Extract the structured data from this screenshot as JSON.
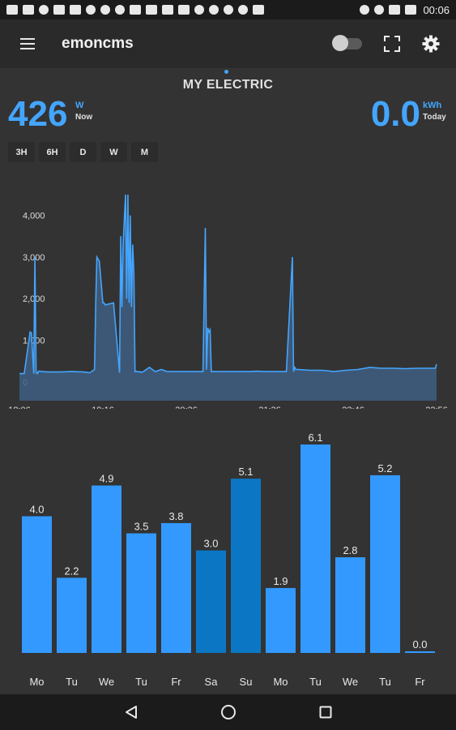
{
  "status_bar": {
    "time": "00:06"
  },
  "app_bar": {
    "title": "emoncms",
    "menu_icon": "hamburger-menu-icon",
    "fullscreen_icon": "fullscreen-icon",
    "settings_icon": "gear-icon"
  },
  "page": {
    "title": "MY ELECTRIC"
  },
  "power": {
    "value": "426",
    "unit": "W",
    "label": "Now"
  },
  "energy": {
    "value": "0.0",
    "unit": "kWh",
    "label": "Today"
  },
  "range_buttons": [
    "3H",
    "6H",
    "D",
    "W",
    "M"
  ],
  "colors": {
    "accent": "#44a5ff",
    "bar": "#3399ff",
    "bar_weekend": "#0b77c4",
    "background": "#333333",
    "line_fill": "#3f5f82"
  },
  "chart_data": [
    {
      "type": "area",
      "title": "",
      "xlabel": "",
      "ylabel": "",
      "x_ticks": [
        "18:06",
        "19:16",
        "20:26",
        "21:36",
        "22:46",
        "23:56"
      ],
      "y_ticks": [
        "0",
        "1,000",
        "2,000",
        "3,000",
        "4,000"
      ],
      "ylim": [
        -450,
        5200
      ],
      "x": [
        "18:06",
        "18:10",
        "18:15",
        "18:16",
        "18:18",
        "18:19",
        "18:20",
        "18:21",
        "18:22",
        "18:25",
        "18:30",
        "18:40",
        "18:50",
        "19:00",
        "19:05",
        "19:09",
        "19:10",
        "19:11",
        "19:13",
        "19:16",
        "19:17",
        "19:18",
        "19:25",
        "19:30",
        "19:31",
        "19:32",
        "19:33",
        "19:35",
        "19:36",
        "19:37",
        "19:38",
        "19:39",
        "19:40",
        "19:41",
        "19:42",
        "19:43",
        "19:44",
        "19:45",
        "19:46",
        "19:47",
        "19:48",
        "19:50",
        "19:55",
        "20:00",
        "20:05",
        "20:10",
        "20:15",
        "20:20",
        "20:30",
        "20:40",
        "20:42",
        "20:43",
        "20:44",
        "20:45",
        "20:46",
        "20:47",
        "20:50",
        "21:00",
        "21:10",
        "21:20",
        "21:25",
        "21:30",
        "21:40",
        "21:50",
        "21:55",
        "21:56",
        "21:57",
        "21:58",
        "22:00",
        "22:10",
        "22:20",
        "22:30",
        "22:40",
        "22:50",
        "23:00",
        "23:10",
        "23:20",
        "23:30",
        "23:40",
        "23:50",
        "23:55",
        "23:56"
      ],
      "values": [
        200,
        200,
        1200,
        1180,
        200,
        3000,
        220,
        200,
        260,
        250,
        240,
        240,
        250,
        240,
        220,
        300,
        1900,
        3000,
        2900,
        1900,
        1900,
        1850,
        1900,
        220,
        3500,
        1800,
        3300,
        4500,
        2000,
        4500,
        1900,
        4000,
        1800,
        3300,
        2600,
        250,
        260,
        250,
        240,
        250,
        230,
        250,
        350,
        250,
        300,
        250,
        250,
        250,
        250,
        250,
        3700,
        300,
        1300,
        1200,
        1250,
        250,
        250,
        250,
        250,
        250,
        260,
        250,
        250,
        250,
        3000,
        250,
        350,
        300,
        300,
        280,
        280,
        250,
        280,
        300,
        350,
        330,
        330,
        320,
        330,
        330,
        330,
        426
      ]
    },
    {
      "type": "bar",
      "title": "",
      "xlabel": "",
      "ylabel": "",
      "categories": [
        "Mo",
        "Tu",
        "We",
        "Tu",
        "Fr",
        "Sa",
        "Su",
        "Mo",
        "Tu",
        "We",
        "Tu",
        "Fr"
      ],
      "values": [
        4.0,
        2.2,
        4.9,
        3.5,
        3.8,
        3.0,
        5.1,
        1.9,
        6.1,
        2.8,
        5.2,
        0.0
      ],
      "labels": [
        "4.0",
        "2.2",
        "4.9",
        "3.5",
        "3.8",
        "3.0",
        "5.1",
        "1.9",
        "6.1",
        "2.8",
        "5.2",
        "0.0"
      ],
      "ylim": [
        0,
        6.1
      ]
    }
  ]
}
